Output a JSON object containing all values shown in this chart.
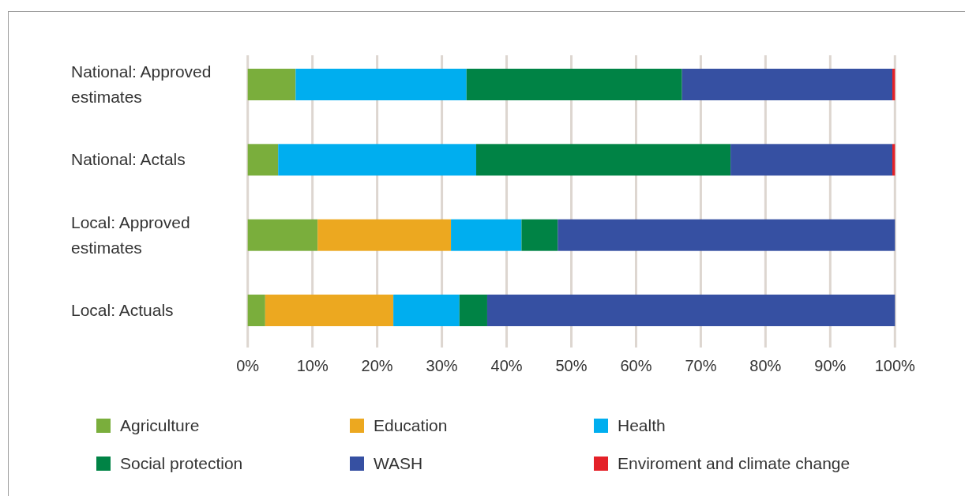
{
  "chart_data": {
    "type": "bar",
    "orientation": "horizontal",
    "stacked": true,
    "categories": [
      "National: Approved estimates",
      "National: Actals",
      "Local: Approved estimates",
      "Local: Actuals"
    ],
    "series": [
      {
        "name": "Agriculture",
        "color": "#7aae3c",
        "values": [
          7.4,
          4.7,
          10.8,
          2.7
        ]
      },
      {
        "name": "Education",
        "color": "#eca820",
        "values": [
          null,
          null,
          20.6,
          19.8
        ]
      },
      {
        "name": "Health",
        "color": "#00aeef",
        "values": [
          26.4,
          30.6,
          10.9,
          10.2
        ]
      },
      {
        "name": "Social protection",
        "color": "#008345",
        "values": [
          33.3,
          39.3,
          5.6,
          4.3
        ]
      },
      {
        "name": "WASH",
        "color": "#3650a2",
        "values": [
          32.5,
          25.0,
          52.1,
          63.0
        ]
      },
      {
        "name": "Enviroment and climate change",
        "color": "#e42128",
        "values": [
          0.4,
          0.4,
          null,
          null
        ]
      }
    ],
    "xlim": [
      0,
      100
    ],
    "xticks": [
      {
        "value": 0,
        "label": "0%"
      },
      {
        "value": 10,
        "label": "10%"
      },
      {
        "value": 20,
        "label": "20%"
      },
      {
        "value": 30,
        "label": "30%"
      },
      {
        "value": 40,
        "label": "40%"
      },
      {
        "value": 50,
        "label": "50%"
      },
      {
        "value": 60,
        "label": "60%"
      },
      {
        "value": 70,
        "label": "70%"
      },
      {
        "value": 80,
        "label": "80%"
      },
      {
        "value": 90,
        "label": "90%"
      },
      {
        "value": 100,
        "label": "100%"
      }
    ],
    "grid": "x",
    "legend": "bottom"
  }
}
